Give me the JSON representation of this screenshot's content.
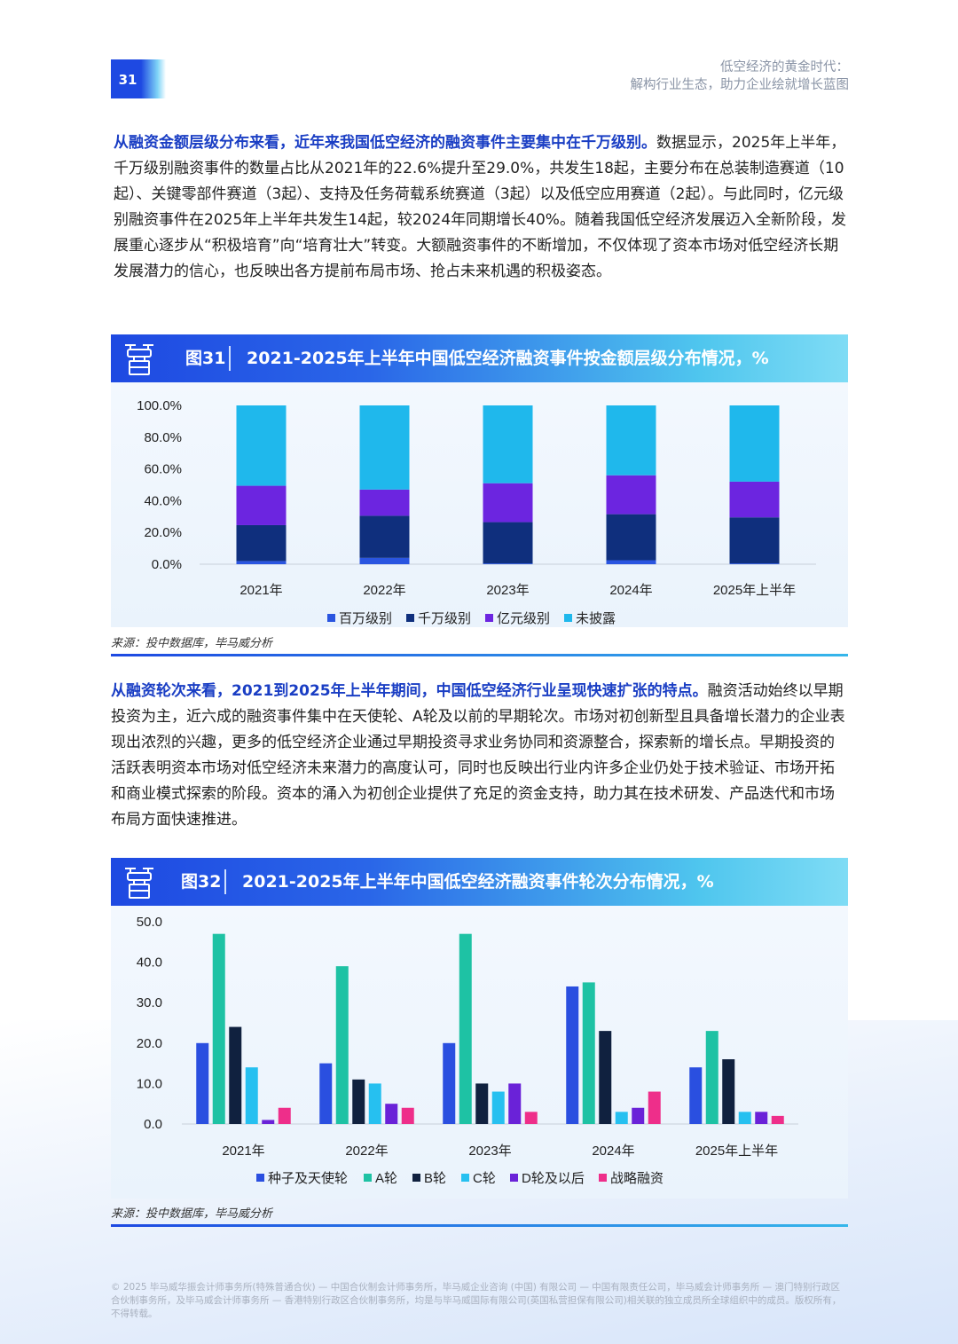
{
  "header": {
    "page_number": "31",
    "title_line1": "低空经济的黄金时代：",
    "title_line2": "解构行业生态，助力企业绘就增长蓝图"
  },
  "para1": {
    "lead": "从融资金额层级分布来看，近年来我国低空经济的融资事件主要集中在千万级别。",
    "body": "数据显示，2025年上半年，千万级别融资事件的数量占比从2021年的22.6%提升至29.0%，共发生18起，主要分布在总装制造赛道（10起）、关键零部件赛道（3起）、支持及任务荷载系统赛道（3起）以及低空应用赛道（2起）。与此同时，亿元级别融资事件在2025年上半年共发生14起，较2024年同期增长40%。随着我国低空经济发展迈入全新阶段，发展重心逐步从“积极培育”向“培育壮大”转变。大额融资事件的不断增加，不仅体现了资本市场对低空经济长期发展潜力的信心，也反映出各方提前布局市场、抢占未来机遇的积极姿态。"
  },
  "fig31": {
    "number": "图31",
    "title": "2021-2025年上半年中国低空经济融资事件按金额层级分布情况，%",
    "source": "来源：投中数据库，毕马威分析"
  },
  "para2": {
    "lead": "从融资轮次来看，2021到2025年上半年期间，中国低空经济行业呈现快速扩张的特点。",
    "body": "融资活动始终以早期投资为主，近六成的融资事件集中在天使轮、A轮及以前的早期轮次。市场对初创新型且具备增长潜力的企业表现出浓烈的兴趣，更多的低空经济企业通过早期投资寻求业务协同和资源整合，探索新的增长点。早期投资的活跃表明资本市场对低空经济未来潜力的高度认可，同时也反映出行业内许多企业仍处于技术验证、市场开拓和商业模式探索的阶段。资本的涌入为初创企业提供了充足的资金支持，助力其在技术研发、产品迭代和市场布局方面快速推进。"
  },
  "fig32": {
    "number": "图32",
    "title": "2021-2025年上半年中国低空经济融资事件轮次分布情况，%",
    "source": "来源：投中数据库，毕马威分析"
  },
  "footer": "© 2025 毕马威华振会计师事务所(特殊普通合伙) — 中国合伙制会计师事务所，毕马威企业咨询 (中国) 有限公司 — 中国有限责任公司，毕马威会计师事务所 — 澳门特别行政区合伙制事务所，及毕马威会计师事务所 — 香港特别行政区合伙制事务所，均是与毕马威国际有限公司(英国私营担保有限公司)相关联的独立成员所全球组织中的成员。版权所有，不得转载。",
  "chart_data": [
    {
      "type": "bar",
      "stacked": true,
      "categories": [
        "2021年",
        "2022年",
        "2023年",
        "2024年",
        "2025年上半年"
      ],
      "ylim": [
        0,
        100
      ],
      "ytick_labels": [
        "0.0%",
        "20.0%",
        "40.0%",
        "60.0%",
        "80.0%",
        "100.0%"
      ],
      "legend_position": "bottom",
      "series": [
        {
          "name": "百万级别",
          "color": "#2a55e0",
          "values": [
            2.0,
            4.0,
            0.5,
            2.5,
            0.5
          ]
        },
        {
          "name": "千万级别",
          "color": "#0f2f7d",
          "values": [
            22.6,
            26.5,
            26.0,
            29.0,
            29.0
          ]
        },
        {
          "name": "亿元级别",
          "color": "#6c25e0",
          "values": [
            24.8,
            16.5,
            24.5,
            24.5,
            22.5
          ]
        },
        {
          "name": "未披露",
          "color": "#1fb8ec",
          "values": [
            50.6,
            53.0,
            49.0,
            44.0,
            48.0
          ]
        }
      ]
    },
    {
      "type": "bar",
      "categories": [
        "2021年",
        "2022年",
        "2023年",
        "2024年",
        "2025年上半年"
      ],
      "ylim": [
        0,
        50
      ],
      "ytick_labels": [
        "0.0",
        "10.0",
        "20.0",
        "30.0",
        "40.0",
        "50.0"
      ],
      "legend_position": "bottom",
      "series": [
        {
          "name": "种子及天使轮",
          "color": "#2a4fe0",
          "values": [
            20.0,
            15.0,
            20.0,
            34.0,
            14.0
          ]
        },
        {
          "name": "A轮",
          "color": "#1ec2a4",
          "values": [
            47.0,
            39.0,
            47.0,
            35.0,
            23.0
          ]
        },
        {
          "name": "B轮",
          "color": "#10213f",
          "values": [
            24.0,
            11.0,
            10.0,
            23.0,
            16.0
          ]
        },
        {
          "name": "C轮",
          "color": "#26c0f0",
          "values": [
            14.0,
            10.0,
            8.0,
            3.0,
            3.0
          ]
        },
        {
          "name": "D轮及以后",
          "color": "#6a22d8",
          "values": [
            1.0,
            5.0,
            10.0,
            4.0,
            3.0
          ]
        },
        {
          "name": "战略融资",
          "color": "#ee2e8a",
          "values": [
            4.0,
            4.0,
            3.0,
            8.0,
            2.0
          ]
        }
      ]
    }
  ]
}
